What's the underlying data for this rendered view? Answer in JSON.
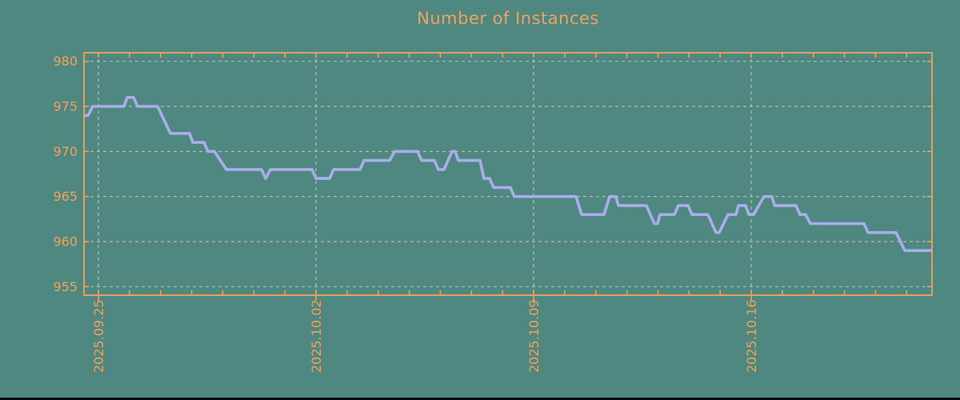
{
  "page": {
    "background_color": "#4f8781",
    "bottom_bar_color": "#000000"
  },
  "chart_data": {
    "type": "line",
    "title": "Number of Instances",
    "title_color": "#f1a35e",
    "frame_color": "#f1a35e",
    "tick_label_color": "#f1a35e",
    "grid_color": "#b7bbb3",
    "line_color": "#a9aeea",
    "grid": true,
    "legend_position": "none",
    "ylabel": "",
    "xlabel": "",
    "y_ticks": [
      980,
      975,
      970,
      965,
      960,
      955
    ],
    "ylim": [
      954.05,
      980.95
    ],
    "x_ticks": [
      {
        "label": "2025.09.25",
        "pos": 0.017
      },
      {
        "label": "2025.10.02",
        "pos": 0.2736
      },
      {
        "label": "2025.10.09",
        "pos": 0.5302
      },
      {
        "label": "2025.10.16",
        "pos": 0.7868
      }
    ],
    "x_minor_step": 0.036657,
    "x_minor_tick_count": 27,
    "x_span_days": 27.3,
    "series": [
      {
        "name": "instances",
        "color": "#a9aeea",
        "points": [
          [
            0.0,
            974
          ],
          [
            0.0047,
            974
          ],
          [
            0.0104,
            975
          ],
          [
            0.0472,
            975
          ],
          [
            0.0509,
            976
          ],
          [
            0.0585,
            976
          ],
          [
            0.0632,
            975
          ],
          [
            0.0868,
            975
          ],
          [
            0.1019,
            972
          ],
          [
            0.1245,
            972
          ],
          [
            0.1283,
            971
          ],
          [
            0.1415,
            971
          ],
          [
            0.1462,
            970
          ],
          [
            0.1538,
            970
          ],
          [
            0.1679,
            968
          ],
          [
            0.2094,
            968
          ],
          [
            0.2142,
            967
          ],
          [
            0.2198,
            968
          ],
          [
            0.2689,
            968
          ],
          [
            0.2736,
            967
          ],
          [
            0.2896,
            967
          ],
          [
            0.2943,
            968
          ],
          [
            0.3255,
            968
          ],
          [
            0.3302,
            969
          ],
          [
            0.3604,
            969
          ],
          [
            0.366,
            970
          ],
          [
            0.3934,
            970
          ],
          [
            0.3981,
            969
          ],
          [
            0.4132,
            969
          ],
          [
            0.4179,
            968
          ],
          [
            0.4245,
            968
          ],
          [
            0.434,
            970
          ],
          [
            0.4377,
            970
          ],
          [
            0.4415,
            969
          ],
          [
            0.467,
            969
          ],
          [
            0.4717,
            967
          ],
          [
            0.4783,
            967
          ],
          [
            0.483,
            966
          ],
          [
            0.5028,
            966
          ],
          [
            0.5075,
            965
          ],
          [
            0.5802,
            965
          ],
          [
            0.5868,
            963
          ],
          [
            0.6132,
            963
          ],
          [
            0.6198,
            965
          ],
          [
            0.6274,
            965
          ],
          [
            0.6302,
            964
          ],
          [
            0.6632,
            964
          ],
          [
            0.6726,
            962
          ],
          [
            0.6764,
            962
          ],
          [
            0.6792,
            963
          ],
          [
            0.6962,
            963
          ],
          [
            0.7009,
            964
          ],
          [
            0.7123,
            964
          ],
          [
            0.717,
            963
          ],
          [
            0.7358,
            963
          ],
          [
            0.7453,
            961
          ],
          [
            0.7491,
            961
          ],
          [
            0.7594,
            963
          ],
          [
            0.7689,
            963
          ],
          [
            0.7717,
            964
          ],
          [
            0.7802,
            964
          ],
          [
            0.784,
            963
          ],
          [
            0.7896,
            963
          ],
          [
            0.8019,
            965
          ],
          [
            0.8113,
            965
          ],
          [
            0.8142,
            964
          ],
          [
            0.8396,
            964
          ],
          [
            0.8443,
            963
          ],
          [
            0.8509,
            963
          ],
          [
            0.8566,
            962
          ],
          [
            0.9198,
            962
          ],
          [
            0.9245,
            961
          ],
          [
            0.9575,
            961
          ],
          [
            0.9679,
            959
          ],
          [
            1.0,
            959
          ]
        ]
      }
    ]
  }
}
